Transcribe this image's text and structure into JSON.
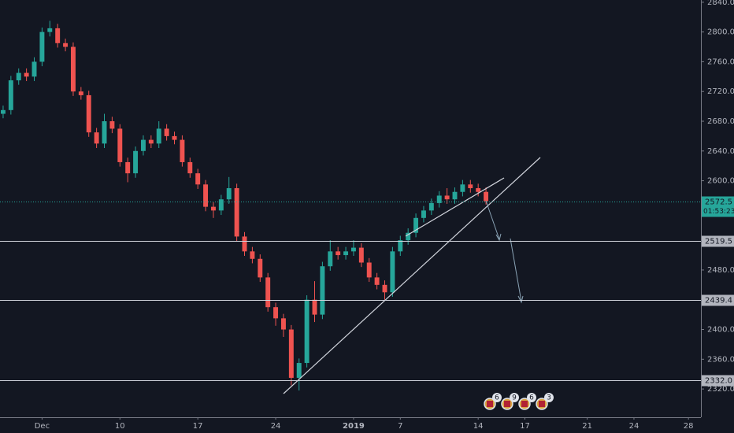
{
  "chart_data": {
    "type": "candlestick",
    "up_color": "#26a69a",
    "down_color": "#ef5350",
    "x": [
      -2.5,
      -2,
      -1.5,
      -1,
      -0.5,
      0,
      0.5,
      1,
      1.5,
      2,
      2.5,
      3,
      3.5,
      4,
      4.5,
      5,
      5.5,
      6,
      6.5,
      7,
      7.5,
      8,
      8.5,
      9,
      9.5,
      10,
      10.5,
      11,
      11.5,
      12,
      12.5,
      13,
      13.5,
      14,
      14.5,
      15,
      15.5,
      16,
      16.5,
      17,
      17.5,
      18,
      18.5,
      19,
      19.5,
      20,
      20.5,
      21,
      21.5,
      22,
      22.5,
      23,
      23.5,
      24,
      24.5,
      25,
      25.5,
      26,
      26.5,
      27,
      27.5,
      28,
      28.5
    ],
    "open": [
      2690,
      2695,
      2735,
      2745,
      2740,
      2760,
      2800,
      2805,
      2785,
      2780,
      2720,
      2715,
      2665,
      2650,
      2680,
      2670,
      2625,
      2610,
      2640,
      2655,
      2650,
      2670,
      2660,
      2655,
      2625,
      2610,
      2595,
      2565,
      2560,
      2575,
      2590,
      2525,
      2505,
      2495,
      2470,
      2430,
      2415,
      2400,
      2335,
      2355,
      2440,
      2420,
      2485,
      2505,
      2500,
      2505,
      2510,
      2490,
      2470,
      2460,
      2450,
      2505,
      2520,
      2530,
      2550,
      2560,
      2570,
      2580,
      2575,
      2585,
      2595,
      2590,
      2585
    ],
    "high": [
      2701,
      2741,
      2751,
      2751,
      2766,
      2806,
      2815,
      2811,
      2791,
      2786,
      2726,
      2721,
      2671,
      2690,
      2686,
      2676,
      2631,
      2646,
      2661,
      2661,
      2680,
      2676,
      2666,
      2661,
      2631,
      2616,
      2601,
      2571,
      2581,
      2605,
      2596,
      2531,
      2511,
      2501,
      2476,
      2436,
      2421,
      2406,
      2361,
      2446,
      2465,
      2491,
      2520,
      2511,
      2511,
      2520,
      2516,
      2496,
      2476,
      2466,
      2511,
      2526,
      2536,
      2556,
      2566,
      2576,
      2586,
      2590,
      2591,
      2601,
      2601,
      2596,
      2591
    ],
    "low": [
      2684,
      2689,
      2729,
      2734,
      2734,
      2754,
      2794,
      2779,
      2774,
      2714,
      2709,
      2659,
      2644,
      2644,
      2664,
      2619,
      2598,
      2604,
      2634,
      2644,
      2644,
      2654,
      2649,
      2619,
      2604,
      2589,
      2559,
      2550,
      2554,
      2569,
      2519,
      2499,
      2489,
      2464,
      2424,
      2405,
      2390,
      2325,
      2318,
      2349,
      2410,
      2414,
      2479,
      2494,
      2494,
      2499,
      2484,
      2464,
      2454,
      2440,
      2444,
      2499,
      2514,
      2524,
      2544,
      2554,
      2564,
      2569,
      2569,
      2579,
      2584,
      2579,
      2568
    ],
    "close": [
      2695,
      2735,
      2745,
      2740,
      2760,
      2800,
      2805,
      2785,
      2780,
      2720,
      2715,
      2665,
      2650,
      2680,
      2670,
      2625,
      2610,
      2640,
      2655,
      2650,
      2670,
      2660,
      2655,
      2625,
      2610,
      2595,
      2565,
      2560,
      2575,
      2590,
      2525,
      2505,
      2495,
      2470,
      2430,
      2415,
      2400,
      2335,
      2355,
      2440,
      2420,
      2485,
      2505,
      2500,
      2505,
      2510,
      2490,
      2470,
      2460,
      2450,
      2505,
      2520,
      2530,
      2550,
      2560,
      2570,
      2580,
      2575,
      2585,
      2595,
      2590,
      2585,
      2572.5
    ],
    "xlim": [
      -2.7,
      42.3
    ],
    "xticks": [
      {
        "value": 0,
        "label": "Dec"
      },
      {
        "value": 5,
        "label": "10"
      },
      {
        "value": 10,
        "label": "17"
      },
      {
        "value": 15,
        "label": "24"
      },
      {
        "value": 20,
        "label": "2019"
      },
      {
        "value": 23,
        "label": "7"
      },
      {
        "value": 28,
        "label": "14"
      },
      {
        "value": 31,
        "label": "17"
      },
      {
        "value": 35,
        "label": "21"
      },
      {
        "value": 38,
        "label": "24"
      },
      {
        "value": 41.5,
        "label": "28"
      }
    ],
    "ylim": [
      2282,
      2843
    ],
    "yticks": [
      {
        "value": 2320,
        "label": "2320.0"
      },
      {
        "value": 2360,
        "label": "2360.0"
      },
      {
        "value": 2400,
        "label": "2400.0"
      },
      {
        "value": 2440,
        "label": "2440.0"
      },
      {
        "value": 2480,
        "label": "2480.0"
      },
      {
        "value": 2520,
        "label": "2520.0"
      },
      {
        "value": 2560,
        "label": "2560.0"
      },
      {
        "value": 2600,
        "label": "2600.0"
      },
      {
        "value": 2640,
        "label": "2640.0"
      },
      {
        "value": 2680,
        "label": "2680.0"
      },
      {
        "value": 2720,
        "label": "2720.0"
      },
      {
        "value": 2760,
        "label": "2760.0"
      },
      {
        "value": 2800,
        "label": "2800.0"
      },
      {
        "value": 2840,
        "label": "2840.0"
      }
    ],
    "levels": [
      2519.5,
      2439.4,
      {
        "value": 2332,
        "label": "2332.0"
      }
    ],
    "last_price": 2572.5,
    "countdown": "01:53:23",
    "event_counts": [
      6,
      9,
      6,
      3
    ]
  }
}
